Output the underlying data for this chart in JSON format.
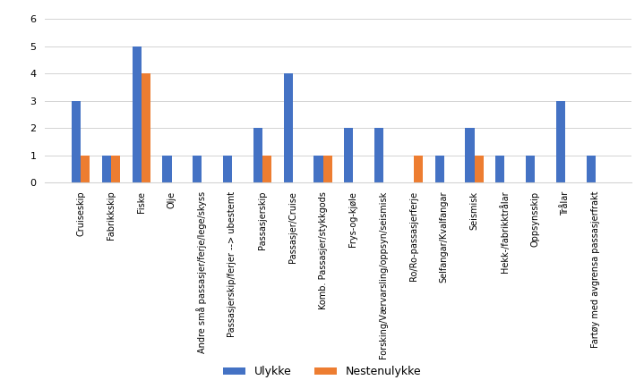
{
  "categories": [
    "Cruiseskip",
    "Fabrikkskip",
    "Fiske",
    "Olje",
    "Andre små passasjer/ferje/lege/skyss",
    "Passasjerskip/ferjer --> ubestemt",
    "Passasjerskip",
    "Passasjer/Cruise",
    "Komb. Passasjer/stykkgods",
    "Frys-og-kjøle",
    "Forsking/Værvarsling/oppsyn/seismisk",
    "Ro/Ro-passasjerferje",
    "Selfangar/Kvalfangar",
    "Seismisk",
    "Hekk-/fabrikktrålar",
    "Oppsynsskip",
    "Trålar",
    "Fartøy med avgrensa passasjerfrakt"
  ],
  "ulykke": [
    3,
    1,
    5,
    1,
    1,
    1,
    2,
    4,
    1,
    2,
    2,
    0,
    1,
    2,
    1,
    1,
    3,
    1
  ],
  "nestenulykke": [
    1,
    1,
    4,
    0,
    0,
    0,
    1,
    0,
    1,
    0,
    0,
    1,
    0,
    1,
    0,
    0,
    0,
    0
  ],
  "ulykke_color": "#4472C4",
  "nestenulykke_color": "#ED7D31",
  "ylim": [
    0,
    6
  ],
  "yticks": [
    0,
    1,
    2,
    3,
    4,
    5,
    6
  ],
  "legend_labels": [
    "Ulykke",
    "Nestenulykke"
  ],
  "bar_width": 0.3,
  "figsize": [
    7.19,
    4.25
  ],
  "dpi": 100,
  "tick_fontsize": 7,
  "label_rotation": 90
}
